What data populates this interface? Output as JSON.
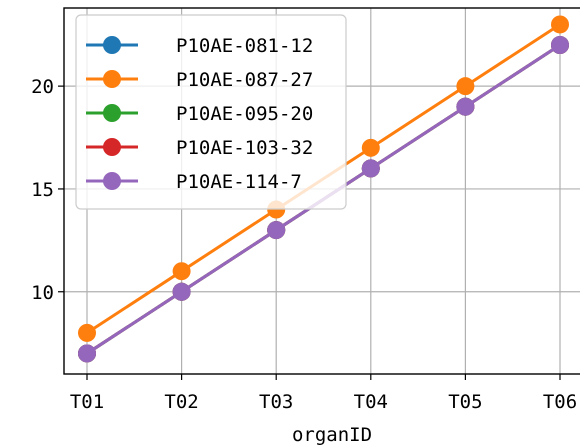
{
  "chart_data": {
    "type": "line",
    "title": "",
    "xlabel": "organID",
    "ylabel": "",
    "categories": [
      "T01",
      "T02",
      "T03",
      "T04",
      "T05",
      "T06"
    ],
    "ylim": [
      6.0,
      23.8
    ],
    "yticks": [
      10,
      15,
      20
    ],
    "grid": true,
    "legend_position": "top-left",
    "series": [
      {
        "name": "P10AE-081-12",
        "color": "#1f77b4",
        "values": [
          7,
          10,
          13,
          16,
          19,
          22
        ]
      },
      {
        "name": "P10AE-087-27",
        "color": "#ff7f0e",
        "values": [
          8,
          11,
          14,
          17,
          20,
          23
        ]
      },
      {
        "name": "P10AE-095-20",
        "color": "#2ca02c",
        "values": [
          7,
          10,
          13,
          16,
          19,
          22
        ]
      },
      {
        "name": "P10AE-103-32",
        "color": "#d62728",
        "values": [
          7,
          10,
          13,
          16,
          19,
          22
        ]
      },
      {
        "name": "P10AE-114-7",
        "color": "#9467bd",
        "values": [
          7,
          10,
          13,
          16,
          19,
          22
        ]
      }
    ]
  }
}
